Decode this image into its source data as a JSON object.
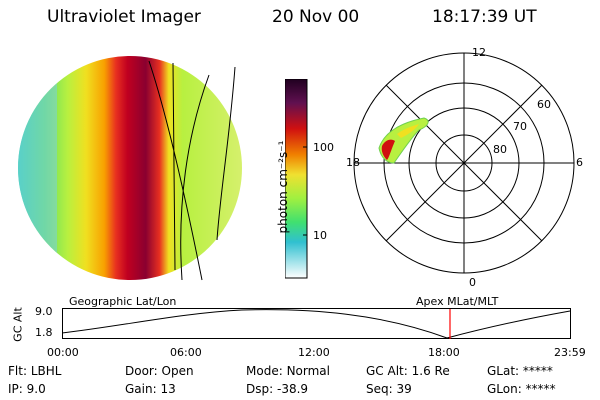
{
  "header": {
    "instrument": "Ultraviolet Imager",
    "date": "20 Nov 00",
    "time": "18:17:39 UT"
  },
  "colorbar": {
    "unit_label": "photon cm⁻²s⁻¹",
    "ticks": [
      "100",
      "10"
    ]
  },
  "polar": {
    "lat_labels": [
      "80",
      "70",
      "60"
    ],
    "mlt_labels": [
      "12",
      "18",
      "6",
      "0"
    ]
  },
  "timeline": {
    "y_axis_label": "GC Alt",
    "y_ticks": [
      "9.0",
      "1.8"
    ],
    "left_title": "Geographic Lat/Lon",
    "right_title": "Apex MLat/MLT",
    "x_ticks": [
      "00:00",
      "06:00",
      "12:00",
      "18:00",
      "23:59"
    ],
    "current_marker_time": "18:17:39"
  },
  "status": {
    "rows": [
      [
        {
          "key": "Flt:",
          "value": "LBHL"
        },
        {
          "key": "Door:",
          "value": "Open"
        },
        {
          "key": "Mode:",
          "value": "Normal"
        },
        {
          "key": "GC Alt:",
          "value": "1.6 Re"
        },
        {
          "key": "GLat:",
          "value": "*****"
        }
      ],
      [
        {
          "key": "IP:",
          "value": "9.0"
        },
        {
          "key": "Gain:",
          "value": "13"
        },
        {
          "key": "Dsp:",
          "value": "-38.9"
        },
        {
          "key": "Seq:",
          "value": "39"
        },
        {
          "key": "GLon:",
          "value": "*****"
        }
      ]
    ]
  },
  "colors": {
    "marker": "#ff0000",
    "grid": "#000000"
  }
}
